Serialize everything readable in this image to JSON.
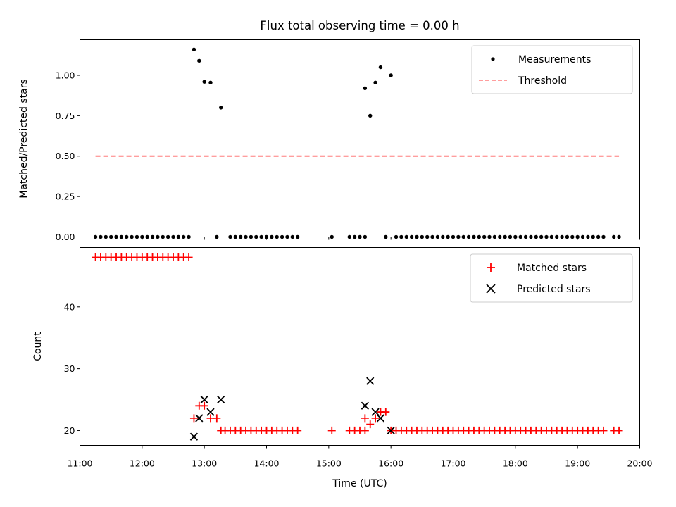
{
  "chart_data": [
    {
      "type": "scatter",
      "title": "Flux total observing time = 0.00 h",
      "ylabel": "Matched/Predicted stars",
      "xlim": [
        "11:00",
        "20:00"
      ],
      "ylim": [
        0,
        1.22
      ],
      "yticks": [
        "0.00",
        "0.25",
        "0.50",
        "0.75",
        "1.00"
      ],
      "legend_position": "upper right",
      "series": [
        {
          "name": "Measurements",
          "marker": "dot",
          "color": "#000000",
          "points": [
            [
              "11:15",
              0
            ],
            [
              "11:20",
              0
            ],
            [
              "11:25",
              0
            ],
            [
              "11:30",
              0
            ],
            [
              "11:35",
              0
            ],
            [
              "11:40",
              0
            ],
            [
              "11:45",
              0
            ],
            [
              "11:50",
              0
            ],
            [
              "11:55",
              0
            ],
            [
              "12:00",
              0
            ],
            [
              "12:05",
              0
            ],
            [
              "12:10",
              0
            ],
            [
              "12:15",
              0
            ],
            [
              "12:20",
              0
            ],
            [
              "12:25",
              0
            ],
            [
              "12:30",
              0
            ],
            [
              "12:35",
              0
            ],
            [
              "12:40",
              0
            ],
            [
              "12:45",
              0
            ],
            [
              "12:50",
              1.16
            ],
            [
              "12:55",
              1.09
            ],
            [
              "13:00",
              0.96
            ],
            [
              "13:06",
              0.955
            ],
            [
              "13:12",
              0
            ],
            [
              "13:16",
              0.8
            ],
            [
              "13:25",
              0
            ],
            [
              "13:30",
              0
            ],
            [
              "13:35",
              0
            ],
            [
              "13:40",
              0
            ],
            [
              "13:45",
              0
            ],
            [
              "13:50",
              0
            ],
            [
              "13:55",
              0
            ],
            [
              "14:00",
              0
            ],
            [
              "14:05",
              0
            ],
            [
              "14:10",
              0
            ],
            [
              "14:15",
              0
            ],
            [
              "14:20",
              0
            ],
            [
              "14:25",
              0
            ],
            [
              "14:30",
              0
            ],
            [
              "15:03",
              0
            ],
            [
              "15:20",
              0
            ],
            [
              "15:25",
              0
            ],
            [
              "15:30",
              0
            ],
            [
              "15:35",
              0
            ],
            [
              "15:35",
              0.92
            ],
            [
              "15:40",
              0.75
            ],
            [
              "15:45",
              0.955
            ],
            [
              "15:50",
              1.05
            ],
            [
              "15:55",
              0
            ],
            [
              "16:00",
              1.0
            ],
            [
              "16:05",
              0
            ],
            [
              "16:10",
              0
            ],
            [
              "16:15",
              0
            ],
            [
              "16:20",
              0
            ],
            [
              "16:25",
              0
            ],
            [
              "16:30",
              0
            ],
            [
              "16:35",
              0
            ],
            [
              "16:40",
              0
            ],
            [
              "16:45",
              0
            ],
            [
              "16:50",
              0
            ],
            [
              "16:55",
              0
            ],
            [
              "17:00",
              0
            ],
            [
              "17:05",
              0
            ],
            [
              "17:10",
              0
            ],
            [
              "17:15",
              0
            ],
            [
              "17:20",
              0
            ],
            [
              "17:25",
              0
            ],
            [
              "17:30",
              0
            ],
            [
              "17:35",
              0
            ],
            [
              "17:40",
              0
            ],
            [
              "17:45",
              0
            ],
            [
              "17:50",
              0
            ],
            [
              "17:55",
              0
            ],
            [
              "18:00",
              0
            ],
            [
              "18:05",
              0
            ],
            [
              "18:10",
              0
            ],
            [
              "18:15",
              0
            ],
            [
              "18:20",
              0
            ],
            [
              "18:25",
              0
            ],
            [
              "18:30",
              0
            ],
            [
              "18:35",
              0
            ],
            [
              "18:40",
              0
            ],
            [
              "18:45",
              0
            ],
            [
              "18:50",
              0
            ],
            [
              "18:55",
              0
            ],
            [
              "19:00",
              0
            ],
            [
              "19:05",
              0
            ],
            [
              "19:10",
              0
            ],
            [
              "19:15",
              0
            ],
            [
              "19:20",
              0
            ],
            [
              "19:25",
              0
            ],
            [
              "19:35",
              0
            ],
            [
              "19:40",
              0
            ]
          ]
        },
        {
          "name": "Threshold",
          "style": "dashed-line",
          "color": "#ff7f7f",
          "points": [
            [
              "11:15",
              0.5
            ],
            [
              "19:40",
              0.5
            ]
          ]
        }
      ]
    },
    {
      "type": "scatter",
      "ylabel": "Count",
      "xlabel": "Time (UTC)",
      "xlim": [
        "11:00",
        "20:00"
      ],
      "xticks": [
        "11:00",
        "12:00",
        "13:00",
        "14:00",
        "15:00",
        "16:00",
        "17:00",
        "18:00",
        "19:00",
        "20:00"
      ],
      "ylim": [
        17.6,
        49.6
      ],
      "yticks": [
        "20",
        "30",
        "40"
      ],
      "legend_position": "upper right",
      "series": [
        {
          "name": "Matched stars",
          "marker": "plus",
          "color": "#ff0000",
          "points": [
            [
              "11:15",
              48
            ],
            [
              "11:20",
              48
            ],
            [
              "11:25",
              48
            ],
            [
              "11:30",
              48
            ],
            [
              "11:35",
              48
            ],
            [
              "11:40",
              48
            ],
            [
              "11:45",
              48
            ],
            [
              "11:50",
              48
            ],
            [
              "11:55",
              48
            ],
            [
              "12:00",
              48
            ],
            [
              "12:05",
              48
            ],
            [
              "12:10",
              48
            ],
            [
              "12:15",
              48
            ],
            [
              "12:20",
              48
            ],
            [
              "12:25",
              48
            ],
            [
              "12:30",
              48
            ],
            [
              "12:35",
              48
            ],
            [
              "12:40",
              48
            ],
            [
              "12:45",
              48
            ],
            [
              "12:50",
              22
            ],
            [
              "12:55",
              24
            ],
            [
              "13:00",
              24
            ],
            [
              "13:06",
              22
            ],
            [
              "13:12",
              22
            ],
            [
              "13:16",
              20
            ],
            [
              "13:20",
              20
            ],
            [
              "13:25",
              20
            ],
            [
              "13:30",
              20
            ],
            [
              "13:35",
              20
            ],
            [
              "13:40",
              20
            ],
            [
              "13:45",
              20
            ],
            [
              "13:50",
              20
            ],
            [
              "13:55",
              20
            ],
            [
              "14:00",
              20
            ],
            [
              "14:05",
              20
            ],
            [
              "14:10",
              20
            ],
            [
              "14:15",
              20
            ],
            [
              "14:20",
              20
            ],
            [
              "14:25",
              20
            ],
            [
              "14:30",
              20
            ],
            [
              "15:03",
              20
            ],
            [
              "15:20",
              20
            ],
            [
              "15:25",
              20
            ],
            [
              "15:30",
              20
            ],
            [
              "15:35",
              20
            ],
            [
              "15:35",
              22
            ],
            [
              "15:40",
              21
            ],
            [
              "15:45",
              22
            ],
            [
              "15:50",
              23
            ],
            [
              "15:55",
              23
            ],
            [
              "16:00",
              20
            ],
            [
              "16:05",
              20
            ],
            [
              "16:10",
              20
            ],
            [
              "16:15",
              20
            ],
            [
              "16:20",
              20
            ],
            [
              "16:25",
              20
            ],
            [
              "16:30",
              20
            ],
            [
              "16:35",
              20
            ],
            [
              "16:40",
              20
            ],
            [
              "16:45",
              20
            ],
            [
              "16:50",
              20
            ],
            [
              "16:55",
              20
            ],
            [
              "17:00",
              20
            ],
            [
              "17:05",
              20
            ],
            [
              "17:10",
              20
            ],
            [
              "17:15",
              20
            ],
            [
              "17:20",
              20
            ],
            [
              "17:25",
              20
            ],
            [
              "17:30",
              20
            ],
            [
              "17:35",
              20
            ],
            [
              "17:40",
              20
            ],
            [
              "17:45",
              20
            ],
            [
              "17:50",
              20
            ],
            [
              "17:55",
              20
            ],
            [
              "18:00",
              20
            ],
            [
              "18:05",
              20
            ],
            [
              "18:10",
              20
            ],
            [
              "18:15",
              20
            ],
            [
              "18:20",
              20
            ],
            [
              "18:25",
              20
            ],
            [
              "18:30",
              20
            ],
            [
              "18:35",
              20
            ],
            [
              "18:40",
              20
            ],
            [
              "18:45",
              20
            ],
            [
              "18:50",
              20
            ],
            [
              "18:55",
              20
            ],
            [
              "19:00",
              20
            ],
            [
              "19:05",
              20
            ],
            [
              "19:10",
              20
            ],
            [
              "19:15",
              20
            ],
            [
              "19:20",
              20
            ],
            [
              "19:25",
              20
            ],
            [
              "19:35",
              20
            ],
            [
              "19:40",
              20
            ]
          ]
        },
        {
          "name": "Predicted stars",
          "marker": "x",
          "color": "#000000",
          "points": [
            [
              "12:50",
              19
            ],
            [
              "12:55",
              22
            ],
            [
              "13:00",
              25
            ],
            [
              "13:06",
              23
            ],
            [
              "13:16",
              25
            ],
            [
              "15:35",
              24
            ],
            [
              "15:40",
              28
            ],
            [
              "15:45",
              23
            ],
            [
              "15:50",
              22
            ],
            [
              "16:00",
              20
            ]
          ]
        }
      ]
    }
  ]
}
